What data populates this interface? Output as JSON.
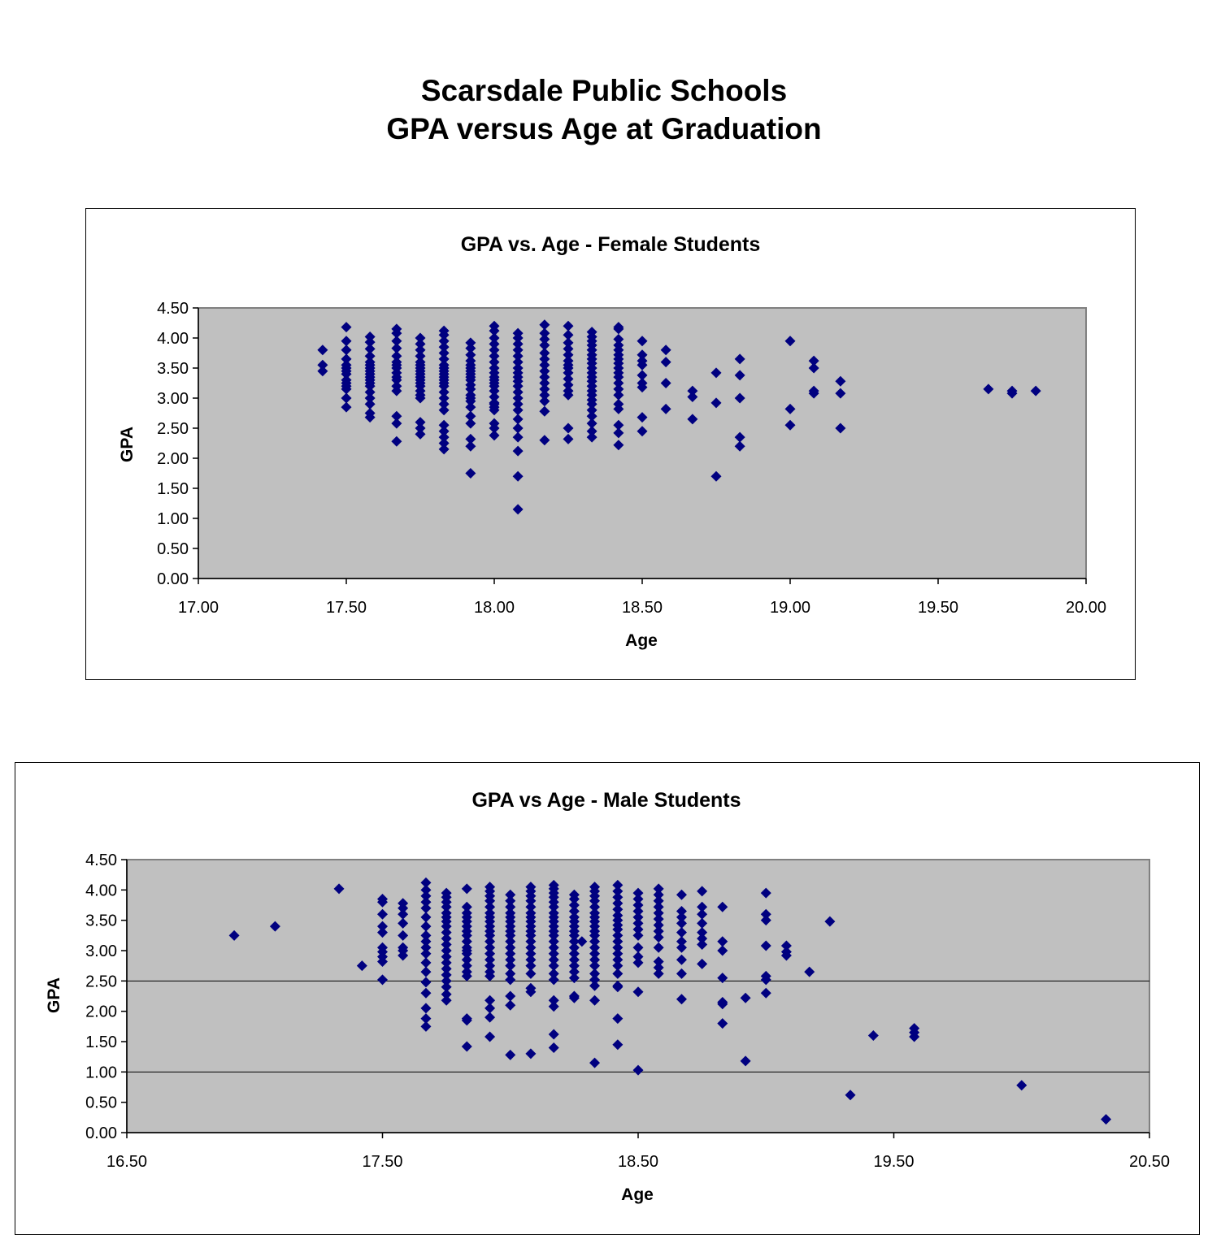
{
  "page": {
    "title_line1": "Scarsdale Public Schools",
    "title_line2": "GPA versus Age at Graduation"
  },
  "colors": {
    "marker": "#000080",
    "plot_background": "#c0c0c0",
    "gridline": "#000000"
  },
  "chart_data": [
    {
      "type": "scatter",
      "title": "GPA  vs. Age - Female Students",
      "xlabel": "Age",
      "ylabel": "GPA",
      "xlim": [
        17.0,
        20.0
      ],
      "ylim": [
        0.0,
        4.5
      ],
      "xticks": [
        "17.00",
        "17.50",
        "18.00",
        "18.50",
        "19.00",
        "19.50",
        "20.00"
      ],
      "yticks": [
        "0.00",
        "0.50",
        "1.00",
        "1.50",
        "2.00",
        "2.50",
        "3.00",
        "3.50",
        "4.00",
        "4.50"
      ],
      "horizontal_gridlines": [],
      "marker": "diamond",
      "legend": "none",
      "x": [
        17.42,
        17.42,
        17.42,
        17.5,
        17.5,
        17.5,
        17.5,
        17.5,
        17.5,
        17.5,
        17.5,
        17.5,
        17.5,
        17.5,
        17.5,
        17.5,
        17.5,
        17.58,
        17.58,
        17.58,
        17.58,
        17.58,
        17.58,
        17.58,
        17.58,
        17.58,
        17.58,
        17.58,
        17.58,
        17.58,
        17.58,
        17.58,
        17.58,
        17.58,
        17.58,
        17.67,
        17.67,
        17.67,
        17.67,
        17.67,
        17.67,
        17.67,
        17.67,
        17.67,
        17.67,
        17.67,
        17.67,
        17.67,
        17.67,
        17.67,
        17.67,
        17.75,
        17.75,
        17.75,
        17.75,
        17.75,
        17.75,
        17.75,
        17.75,
        17.75,
        17.75,
        17.75,
        17.75,
        17.75,
        17.75,
        17.75,
        17.75,
        17.75,
        17.75,
        17.75,
        17.83,
        17.83,
        17.83,
        17.83,
        17.83,
        17.83,
        17.83,
        17.83,
        17.83,
        17.83,
        17.83,
        17.83,
        17.83,
        17.83,
        17.83,
        17.83,
        17.83,
        17.83,
        17.83,
        17.83,
        17.83,
        17.83,
        17.83,
        17.92,
        17.92,
        17.92,
        17.92,
        17.92,
        17.92,
        17.92,
        17.92,
        17.92,
        17.92,
        17.92,
        17.92,
        17.92,
        17.92,
        17.92,
        17.92,
        17.92,
        17.92,
        17.92,
        17.92,
        17.92,
        18.0,
        18.0,
        18.0,
        18.0,
        18.0,
        18.0,
        18.0,
        18.0,
        18.0,
        18.0,
        18.0,
        18.0,
        18.0,
        18.0,
        18.0,
        18.0,
        18.0,
        18.0,
        18.0,
        18.0,
        18.0,
        18.0,
        18.08,
        18.08,
        18.08,
        18.08,
        18.08,
        18.08,
        18.08,
        18.08,
        18.08,
        18.08,
        18.08,
        18.08,
        18.08,
        18.08,
        18.08,
        18.08,
        18.08,
        18.08,
        18.08,
        18.08,
        18.08,
        18.17,
        18.17,
        18.17,
        18.17,
        18.17,
        18.17,
        18.17,
        18.17,
        18.17,
        18.17,
        18.17,
        18.17,
        18.17,
        18.17,
        18.17,
        18.25,
        18.25,
        18.25,
        18.25,
        18.25,
        18.25,
        18.25,
        18.25,
        18.25,
        18.25,
        18.25,
        18.25,
        18.25,
        18.25,
        18.25,
        18.33,
        18.33,
        18.33,
        18.33,
        18.33,
        18.33,
        18.33,
        18.33,
        18.33,
        18.33,
        18.33,
        18.33,
        18.33,
        18.33,
        18.33,
        18.33,
        18.33,
        18.33,
        18.33,
        18.33,
        18.33,
        18.33,
        18.42,
        18.42,
        18.42,
        18.42,
        18.42,
        18.42,
        18.42,
        18.42,
        18.42,
        18.42,
        18.42,
        18.42,
        18.42,
        18.42,
        18.42,
        18.42,
        18.42,
        18.42,
        18.42,
        18.5,
        18.5,
        18.5,
        18.5,
        18.5,
        18.5,
        18.5,
        18.5,
        18.5,
        18.58,
        18.58,
        18.58,
        18.58,
        18.67,
        18.67,
        18.67,
        18.75,
        18.75,
        18.75,
        18.83,
        18.83,
        18.83,
        18.83,
        18.83,
        19.0,
        19.0,
        19.0,
        19.08,
        19.08,
        19.08,
        19.08,
        19.17,
        19.17,
        19.17,
        19.67,
        19.75,
        19.75,
        19.83
      ],
      "y": [
        3.8,
        3.55,
        3.45,
        4.18,
        3.95,
        3.8,
        3.65,
        3.55,
        3.5,
        3.45,
        3.4,
        3.3,
        3.25,
        3.2,
        3.15,
        3.0,
        2.85,
        4.02,
        3.93,
        3.82,
        3.7,
        3.6,
        3.55,
        3.5,
        3.45,
        3.4,
        3.35,
        3.3,
        3.25,
        3.2,
        3.1,
        3.0,
        2.9,
        2.75,
        2.68,
        4.15,
        4.08,
        3.95,
        3.83,
        3.7,
        3.6,
        3.55,
        3.5,
        3.42,
        3.35,
        3.3,
        3.2,
        3.12,
        2.7,
        2.58,
        2.28,
        4.0,
        3.9,
        3.8,
        3.7,
        3.6,
        3.55,
        3.5,
        3.45,
        3.4,
        3.35,
        3.3,
        3.25,
        3.2,
        3.12,
        2.6,
        2.5,
        2.4,
        3.05,
        3.0,
        4.12,
        4.05,
        3.95,
        3.85,
        3.75,
        3.65,
        3.55,
        3.5,
        3.45,
        3.4,
        3.35,
        3.3,
        3.25,
        3.2,
        3.1,
        3.0,
        2.9,
        2.8,
        2.55,
        2.45,
        2.35,
        2.25,
        2.15,
        3.92,
        3.83,
        3.72,
        3.62,
        3.55,
        3.5,
        3.45,
        3.4,
        3.35,
        3.3,
        3.22,
        3.15,
        3.05,
        2.95,
        2.85,
        2.7,
        2.58,
        2.32,
        2.2,
        1.75,
        3.0,
        4.2,
        4.12,
        4.0,
        3.9,
        3.8,
        3.7,
        3.6,
        3.5,
        3.42,
        3.35,
        3.3,
        3.25,
        3.2,
        3.12,
        3.02,
        2.92,
        2.85,
        2.58,
        2.5,
        2.38,
        2.9,
        2.8,
        4.08,
        4.0,
        3.9,
        3.8,
        3.7,
        3.6,
        3.5,
        3.42,
        3.35,
        3.28,
        3.2,
        3.1,
        3.0,
        2.9,
        2.8,
        2.65,
        2.5,
        2.12,
        1.7,
        1.15,
        2.35,
        4.22,
        4.08,
        3.98,
        3.88,
        3.75,
        3.65,
        3.55,
        3.45,
        3.35,
        3.25,
        3.15,
        3.05,
        2.95,
        2.78,
        2.3,
        4.2,
        4.05,
        3.92,
        3.82,
        3.72,
        3.62,
        3.55,
        3.5,
        3.42,
        3.32,
        3.22,
        3.12,
        3.05,
        2.5,
        2.32,
        4.1,
        4.02,
        3.95,
        3.88,
        3.8,
        3.72,
        3.65,
        3.58,
        3.5,
        3.42,
        3.35,
        3.28,
        3.2,
        3.12,
        3.05,
        2.97,
        2.9,
        2.8,
        2.7,
        2.58,
        2.45,
        2.35,
        4.18,
        4.15,
        3.98,
        3.88,
        3.8,
        3.72,
        3.65,
        3.58,
        3.5,
        3.42,
        3.35,
        3.25,
        3.15,
        3.05,
        2.9,
        2.82,
        2.55,
        2.42,
        2.22,
        3.95,
        3.72,
        3.62,
        3.55,
        3.38,
        3.25,
        3.18,
        2.68,
        2.45,
        3.8,
        3.6,
        3.25,
        2.82,
        3.12,
        3.02,
        2.65,
        3.42,
        2.92,
        1.7,
        3.65,
        3.38,
        3.0,
        2.35,
        2.2,
        3.95,
        2.82,
        2.55,
        3.62,
        3.5,
        3.12,
        3.08,
        3.28,
        3.08,
        2.5,
        3.15,
        3.12,
        3.08,
        3.12
      ]
    },
    {
      "type": "scatter",
      "title": "GPA vs Age - Male Students",
      "xlabel": "Age",
      "ylabel": "GPA",
      "xlim": [
        16.5,
        20.5
      ],
      "ylim": [
        0.0,
        4.5
      ],
      "xticks": [
        "16.50",
        "17.50",
        "18.50",
        "19.50",
        "20.50"
      ],
      "yticks": [
        "0.00",
        "0.50",
        "1.00",
        "1.50",
        "2.00",
        "2.50",
        "3.00",
        "3.50",
        "4.00",
        "4.50"
      ],
      "horizontal_gridlines": [
        1.0,
        2.5
      ],
      "marker": "diamond",
      "legend": "none",
      "x": [
        16.92,
        17.08,
        17.33,
        17.42,
        17.5,
        17.5,
        17.5,
        17.5,
        17.5,
        17.5,
        17.5,
        17.5,
        17.5,
        17.5,
        17.58,
        17.58,
        17.58,
        17.58,
        17.58,
        17.58,
        17.58,
        17.58,
        17.67,
        17.67,
        17.67,
        17.67,
        17.67,
        17.67,
        17.67,
        17.67,
        17.67,
        17.67,
        17.67,
        17.67,
        17.67,
        17.67,
        17.67,
        17.67,
        17.67,
        17.67,
        17.75,
        17.75,
        17.75,
        17.75,
        17.75,
        17.75,
        17.75,
        17.75,
        17.75,
        17.75,
        17.75,
        17.75,
        17.75,
        17.75,
        17.75,
        17.75,
        17.75,
        17.75,
        17.75,
        17.75,
        17.83,
        17.83,
        17.83,
        17.83,
        17.83,
        17.83,
        17.83,
        17.83,
        17.83,
        17.83,
        17.83,
        17.83,
        17.83,
        17.83,
        17.83,
        17.83,
        17.83,
        17.83,
        17.83,
        17.92,
        17.92,
        17.92,
        17.92,
        17.92,
        17.92,
        17.92,
        17.92,
        17.92,
        17.92,
        17.92,
        17.92,
        17.92,
        17.92,
        17.92,
        17.92,
        17.92,
        17.92,
        17.92,
        17.92,
        17.92,
        17.92,
        18.0,
        18.0,
        18.0,
        18.0,
        18.0,
        18.0,
        18.0,
        18.0,
        18.0,
        18.0,
        18.0,
        18.0,
        18.0,
        18.0,
        18.0,
        18.0,
        18.0,
        18.0,
        18.0,
        18.08,
        18.08,
        18.08,
        18.08,
        18.08,
        18.08,
        18.08,
        18.08,
        18.08,
        18.08,
        18.08,
        18.08,
        18.08,
        18.08,
        18.08,
        18.08,
        18.08,
        18.08,
        18.08,
        18.08,
        18.17,
        18.17,
        18.17,
        18.17,
        18.17,
        18.17,
        18.17,
        18.17,
        18.17,
        18.17,
        18.17,
        18.17,
        18.17,
        18.17,
        18.17,
        18.17,
        18.17,
        18.17,
        18.17,
        18.17,
        18.17,
        18.17,
        18.17,
        18.25,
        18.25,
        18.25,
        18.25,
        18.25,
        18.25,
        18.25,
        18.25,
        18.25,
        18.25,
        18.25,
        18.25,
        18.25,
        18.25,
        18.25,
        18.25,
        18.25,
        18.25,
        18.28,
        18.33,
        18.33,
        18.33,
        18.33,
        18.33,
        18.33,
        18.33,
        18.33,
        18.33,
        18.33,
        18.33,
        18.33,
        18.33,
        18.33,
        18.33,
        18.33,
        18.33,
        18.33,
        18.33,
        18.33,
        18.33,
        18.42,
        18.42,
        18.42,
        18.42,
        18.42,
        18.42,
        18.42,
        18.42,
        18.42,
        18.42,
        18.42,
        18.42,
        18.42,
        18.42,
        18.42,
        18.42,
        18.42,
        18.42,
        18.42,
        18.42,
        18.5,
        18.5,
        18.5,
        18.5,
        18.5,
        18.5,
        18.5,
        18.5,
        18.5,
        18.5,
        18.5,
        18.5,
        18.5,
        18.58,
        18.58,
        18.58,
        18.58,
        18.58,
        18.58,
        18.58,
        18.58,
        18.58,
        18.58,
        18.58,
        18.58,
        18.58,
        18.67,
        18.67,
        18.67,
        18.67,
        18.67,
        18.67,
        18.67,
        18.67,
        18.67,
        18.67,
        18.75,
        18.75,
        18.75,
        18.75,
        18.75,
        18.75,
        18.75,
        18.75,
        18.83,
        18.83,
        18.83,
        18.83,
        18.83,
        18.83,
        18.83,
        18.92,
        18.92,
        19.0,
        19.0,
        19.0,
        19.0,
        19.0,
        19.0,
        19.0,
        19.08,
        19.08,
        19.08,
        19.17,
        19.25,
        19.33,
        19.42,
        19.58,
        19.58,
        19.58,
        20.0,
        20.33
      ],
      "y": [
        3.25,
        3.4,
        4.02,
        2.75,
        3.85,
        3.8,
        3.6,
        3.4,
        3.3,
        3.05,
        2.98,
        2.9,
        2.82,
        2.52,
        3.78,
        3.7,
        3.6,
        3.45,
        3.25,
        3.05,
        3.0,
        2.92,
        4.12,
        4.0,
        3.9,
        3.8,
        3.7,
        3.55,
        3.4,
        3.25,
        3.15,
        3.05,
        2.95,
        2.8,
        2.65,
        2.48,
        2.3,
        2.05,
        1.88,
        1.75,
        3.95,
        3.88,
        3.8,
        3.72,
        3.62,
        3.55,
        3.48,
        3.4,
        3.3,
        3.2,
        3.1,
        3.0,
        2.9,
        2.8,
        2.7,
        2.6,
        2.5,
        2.4,
        2.28,
        2.18,
        4.02,
        3.72,
        3.62,
        3.55,
        3.48,
        3.4,
        3.32,
        3.25,
        3.15,
        3.05,
        2.95,
        2.85,
        2.75,
        2.65,
        2.58,
        1.88,
        1.85,
        1.42,
        3.0,
        4.05,
        3.98,
        3.9,
        3.82,
        3.72,
        3.62,
        3.55,
        3.48,
        3.4,
        3.32,
        3.25,
        3.15,
        3.05,
        2.95,
        2.85,
        2.75,
        2.65,
        2.58,
        2.18,
        2.05,
        1.9,
        1.58,
        3.92,
        3.82,
        3.72,
        3.62,
        3.55,
        3.48,
        3.4,
        3.32,
        3.25,
        3.15,
        3.05,
        2.95,
        2.85,
        2.75,
        2.62,
        2.52,
        2.25,
        1.28,
        2.1,
        4.05,
        3.98,
        3.9,
        3.82,
        3.72,
        3.62,
        3.55,
        3.48,
        3.4,
        3.32,
        3.25,
        3.15,
        3.05,
        2.95,
        2.85,
        2.75,
        2.62,
        2.38,
        2.32,
        1.3,
        4.08,
        4.02,
        3.95,
        3.88,
        3.8,
        3.72,
        3.62,
        3.55,
        3.48,
        3.4,
        3.32,
        3.25,
        3.15,
        3.05,
        2.95,
        2.85,
        2.75,
        2.62,
        2.52,
        2.18,
        2.08,
        1.62,
        1.4,
        3.92,
        3.85,
        3.75,
        3.65,
        3.55,
        3.48,
        3.4,
        3.32,
        3.25,
        3.15,
        3.05,
        2.95,
        2.85,
        2.75,
        2.65,
        2.55,
        2.25,
        2.22,
        3.15,
        4.05,
        3.98,
        3.9,
        3.82,
        3.72,
        3.62,
        3.55,
        3.48,
        3.4,
        3.32,
        3.25,
        3.15,
        3.05,
        2.95,
        2.85,
        2.75,
        2.62,
        2.52,
        2.42,
        2.18,
        1.15,
        4.08,
        3.98,
        3.88,
        3.78,
        3.68,
        3.58,
        3.5,
        3.42,
        3.35,
        3.25,
        3.15,
        3.05,
        2.95,
        2.85,
        2.75,
        2.62,
        2.42,
        1.88,
        1.45,
        2.4,
        3.95,
        3.85,
        3.75,
        3.65,
        3.55,
        3.45,
        3.35,
        3.25,
        3.05,
        2.9,
        2.8,
        2.32,
        1.03,
        4.02,
        3.92,
        3.82,
        3.72,
        3.62,
        3.52,
        3.42,
        3.32,
        3.22,
        3.05,
        2.82,
        2.72,
        2.62,
        3.92,
        3.65,
        3.55,
        3.45,
        3.3,
        3.15,
        3.05,
        2.85,
        2.62,
        2.2,
        3.98,
        3.72,
        3.6,
        3.45,
        3.3,
        3.2,
        3.1,
        2.78,
        3.72,
        3.15,
        3.0,
        2.55,
        2.15,
        1.8,
        2.12,
        2.22,
        1.18,
        3.95,
        3.6,
        3.5,
        3.08,
        2.58,
        2.3,
        2.52,
        3.08,
        2.98,
        2.92,
        2.65,
        3.48,
        0.62,
        1.6,
        1.72,
        1.65,
        1.58,
        0.78,
        0.22
      ]
    }
  ]
}
